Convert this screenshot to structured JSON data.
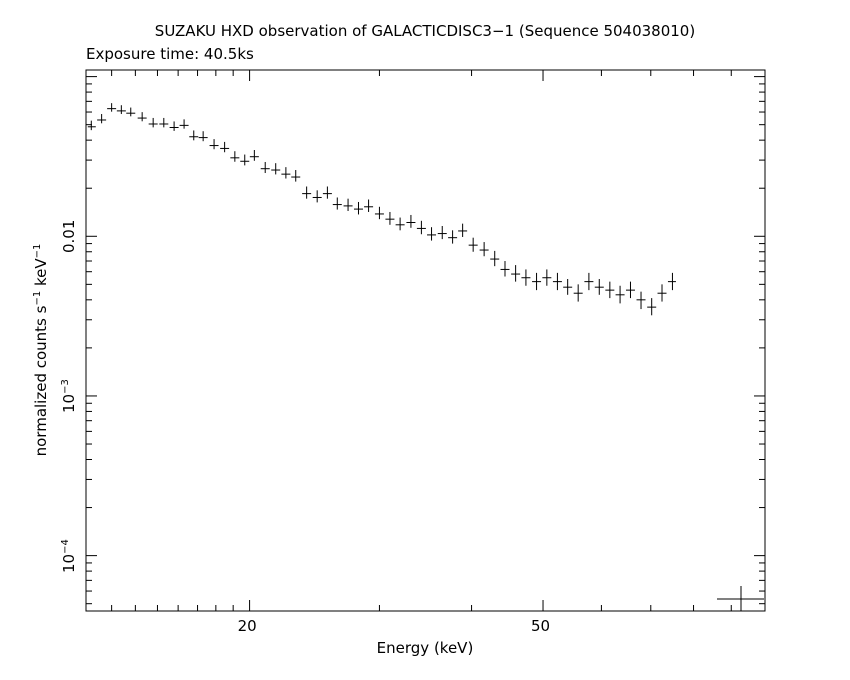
{
  "title": "SUZAKU HXD observation of GALACTICDISC3−1 (Sequence 504038010)",
  "subtitle": "Exposure time: 40.5ks",
  "chart_data": {
    "type": "scatter",
    "title": "SUZAKU HXD observation of GALACTICDISC3−1 (Sequence 504038010)",
    "subtitle": "Exposure time: 40.5ks",
    "xlabel": "Energy (keV)",
    "ylabel_base": "normalized counts s",
    "ylabel_exp1": "−1",
    "ylabel_mid": " keV",
    "ylabel_exp2": "−1",
    "xscale": "log",
    "yscale": "log",
    "xlim": [
      12,
      100
    ],
    "ylim": [
      4.5e-05,
      0.11
    ],
    "xticks": [
      {
        "value": 20,
        "label": "20"
      },
      {
        "value": 50,
        "label": "50"
      }
    ],
    "yticks": [
      {
        "value": 0.01,
        "label": "0.01"
      },
      {
        "value": 0.001,
        "base": "10",
        "exp": "−3"
      },
      {
        "value": 0.0001,
        "base": "10",
        "exp": "−4"
      }
    ],
    "series": [
      {
        "points": [
          [
            12.2,
            0.0485,
            0.0023,
            0.0045
          ],
          [
            12.6,
            0.0535,
            0.0025,
            0.0048
          ],
          [
            13.0,
            0.063,
            0.0027,
            0.0052
          ],
          [
            13.4,
            0.061,
            0.0027,
            0.0052
          ],
          [
            13.8,
            0.059,
            0.0026,
            0.005
          ],
          [
            14.3,
            0.055,
            0.0025,
            0.0049
          ],
          [
            14.8,
            0.0505,
            0.0024,
            0.0046
          ],
          [
            15.3,
            0.0505,
            0.0024,
            0.0046
          ],
          [
            15.8,
            0.048,
            0.0023,
            0.0044
          ],
          [
            16.3,
            0.0495,
            0.0023,
            0.0045
          ],
          [
            16.8,
            0.042,
            0.0021,
            0.004
          ],
          [
            17.3,
            0.0415,
            0.0021,
            0.004
          ],
          [
            17.9,
            0.037,
            0.0019,
            0.0036
          ],
          [
            18.5,
            0.0355,
            0.0019,
            0.0035
          ],
          [
            19.1,
            0.031,
            0.0017,
            0.0031
          ],
          [
            19.7,
            0.0295,
            0.0017,
            0.003
          ],
          [
            20.3,
            0.0315,
            0.0018,
            0.0032
          ],
          [
            21.0,
            0.0265,
            0.0016,
            0.0027
          ],
          [
            21.7,
            0.026,
            0.0016,
            0.0027
          ],
          [
            22.4,
            0.0245,
            0.0015,
            0.0026
          ],
          [
            23.1,
            0.0235,
            0.0015,
            0.0025
          ],
          [
            23.9,
            0.0185,
            0.0013,
            0.002
          ],
          [
            24.7,
            0.0175,
            0.0012,
            0.0019
          ],
          [
            25.5,
            0.0185,
            0.0013,
            0.002
          ],
          [
            26.3,
            0.0158,
            0.0011,
            0.0017
          ],
          [
            27.2,
            0.0155,
            0.0011,
            0.0017
          ],
          [
            28.1,
            0.0148,
            0.0011,
            0.0016
          ],
          [
            29.0,
            0.0153,
            0.0011,
            0.0017
          ],
          [
            30.0,
            0.0138,
            0.001,
            0.0015
          ],
          [
            31.0,
            0.0128,
            0.001,
            0.0014
          ],
          [
            32.0,
            0.0118,
            0.0009,
            0.0013
          ],
          [
            33.1,
            0.0122,
            0.0009,
            0.0014
          ],
          [
            34.2,
            0.0112,
            0.0009,
            0.0013
          ],
          [
            35.3,
            0.0102,
            0.0008,
            0.0012
          ],
          [
            36.5,
            0.0104,
            0.0008,
            0.0012
          ],
          [
            37.7,
            0.0098,
            0.0008,
            0.0011
          ],
          [
            38.9,
            0.0108,
            0.0009,
            0.0012
          ],
          [
            40.2,
            0.0088,
            0.0008,
            0.001
          ],
          [
            41.6,
            0.0082,
            0.0007,
            0.001
          ],
          [
            43.0,
            0.0072,
            0.0007,
            0.0009
          ],
          [
            44.4,
            0.0062,
            0.0006,
            0.0008
          ],
          [
            45.9,
            0.0058,
            0.0006,
            0.0008
          ],
          [
            47.4,
            0.0055,
            0.0006,
            0.0007
          ],
          [
            49.0,
            0.0052,
            0.0006,
            0.0007
          ],
          [
            50.6,
            0.0055,
            0.0006,
            0.0007
          ],
          [
            52.3,
            0.0052,
            0.0006,
            0.0007
          ],
          [
            54.0,
            0.0048,
            0.0005,
            0.0006
          ],
          [
            55.8,
            0.0044,
            0.0005,
            0.0006
          ],
          [
            57.7,
            0.0052,
            0.0006,
            0.0007
          ],
          [
            59.6,
            0.0048,
            0.0005,
            0.0006
          ],
          [
            61.6,
            0.0046,
            0.0005,
            0.0006
          ],
          [
            63.6,
            0.0043,
            0.0005,
            0.0006
          ],
          [
            65.7,
            0.0046,
            0.0005,
            0.0006
          ],
          [
            67.9,
            0.004,
            0.0005,
            0.0005
          ],
          [
            70.2,
            0.0036,
            0.0004,
            0.0005
          ],
          [
            72.5,
            0.0044,
            0.0005,
            0.0006
          ],
          [
            74.9,
            0.0052,
            0.0006,
            0.0007
          ]
        ]
      }
    ]
  }
}
